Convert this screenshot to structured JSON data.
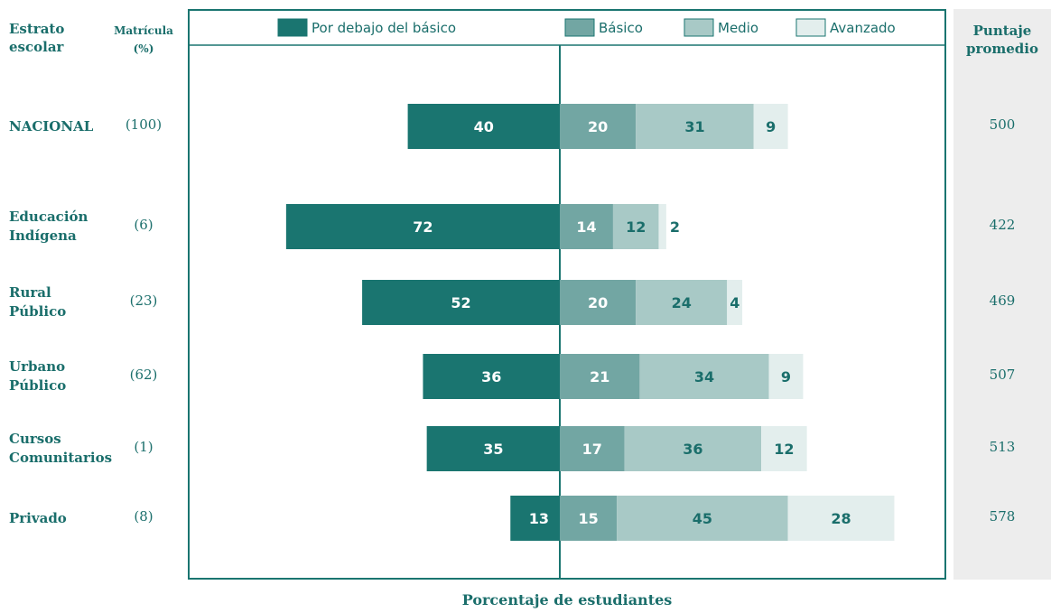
{
  "headers": {
    "stratum": [
      "Estrato",
      "escolar"
    ],
    "enrollment": [
      "Matrícula",
      "(%)"
    ],
    "score": [
      "Puntaje",
      "promedio"
    ]
  },
  "chart_data": {
    "type": "bar",
    "orientation": "horizontal",
    "stacked": true,
    "diverging": true,
    "categories": [
      "NACIONAL",
      "Educación Indígena",
      "Rural Público",
      "Urbano Público",
      "Cursos Comunitarios",
      "Privado"
    ],
    "category_lines": [
      [
        "NACIONAL"
      ],
      [
        "Educación",
        "Indígena"
      ],
      [
        "Rural",
        "Público"
      ],
      [
        "Urbano",
        "Público"
      ],
      [
        "Cursos",
        "Comunitarios"
      ],
      [
        "Privado"
      ]
    ],
    "enrollment": [
      "(100)",
      "(6)",
      "(23)",
      "(62)",
      "(1)",
      "(8)"
    ],
    "average_score": [
      "500",
      "422",
      "469",
      "507",
      "513",
      "578"
    ],
    "series": [
      {
        "name": "Por debajo del básico",
        "color": "#1a7570",
        "text_color": "#ffffff",
        "side": "left",
        "values": [
          40,
          72,
          52,
          36,
          35,
          13
        ]
      },
      {
        "name": "Básico",
        "color": "#72a6a3",
        "text_color": "#ffffff",
        "side": "right",
        "values": [
          20,
          14,
          20,
          21,
          17,
          15
        ]
      },
      {
        "name": "Medio",
        "color": "#a8c9c6",
        "text_color": "#1a6e6b",
        "side": "right",
        "values": [
          31,
          12,
          24,
          34,
          36,
          45
        ]
      },
      {
        "name": "Avanzado",
        "color": "#e3eeed",
        "text_color": "#1a6e6b",
        "side": "right",
        "values": [
          9,
          2,
          4,
          9,
          12,
          28
        ]
      }
    ],
    "xlabel": "Porcentaje de estudiantes",
    "legend": "top",
    "grid": false
  }
}
